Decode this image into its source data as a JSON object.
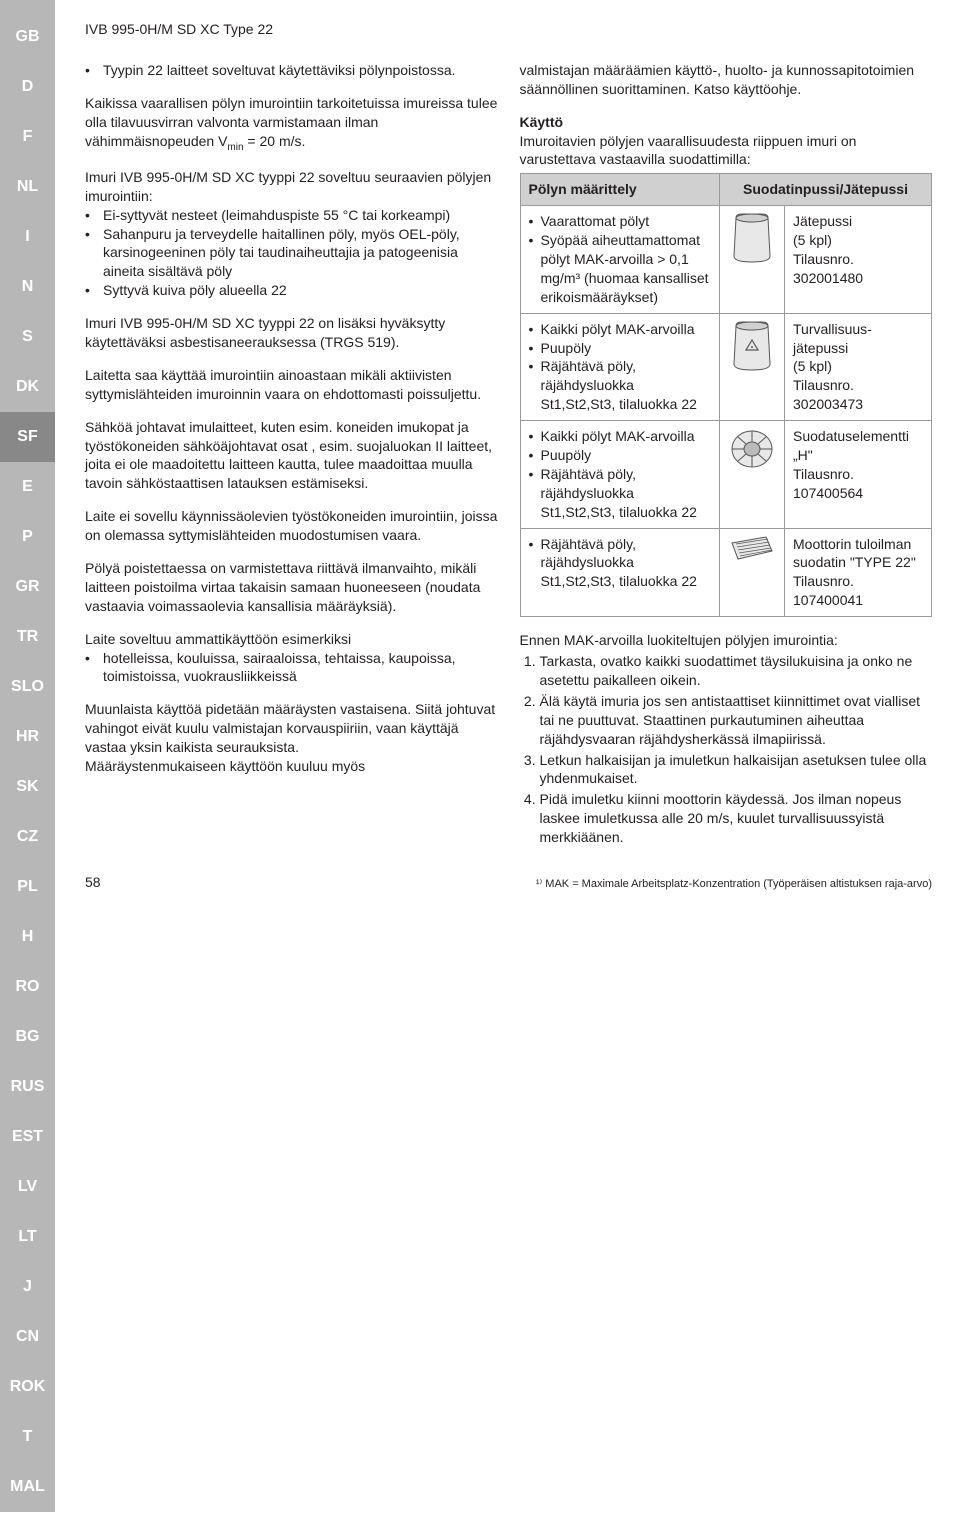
{
  "sidebar": {
    "items": [
      "GB",
      "D",
      "F",
      "NL",
      "I",
      "N",
      "S",
      "DK",
      "SF",
      "E",
      "P",
      "GR",
      "TR",
      "SLO",
      "HR",
      "SK",
      "CZ",
      "PL",
      "H",
      "RO",
      "BG",
      "RUS",
      "EST",
      "LV",
      "LT",
      "J",
      "CN",
      "ROK",
      "T",
      "MAL"
    ],
    "active": "SF"
  },
  "header": "IVB 995-0H/M SD XC Type 22",
  "left": {
    "p1_bullet": "Tyypin 22 laitteet soveltuvat käytettäviksi pölynpoistossa.",
    "p2a": "Kaikissa vaarallisen pölyn imurointiin tarkoitetuissa imureissa tulee olla tilavuusvirran valvonta varmistamaan ilman vähimmäisnopeuden V",
    "p2sub": "min",
    "p2b": " = 20 m/s.",
    "p3": "Imuri IVB 995-0H/M SD XC tyyppi 22 soveltuu seuraavien pölyjen imurointiin:",
    "list1": [
      "Ei-syttyvät nesteet (leimahduspiste 55 °C tai korkeampi)",
      "Sahanpuru ja terveydelle haitallinen pöly, myös OEL-pöly, karsinogeeninen pöly tai taudinaiheuttajia ja patogeenisia aineita sisältävä pöly",
      "Syttyvä kuiva pöly alueella 22"
    ],
    "p4": "Imuri IVB 995-0H/M SD XC tyyppi 22 on lisäksi hyväksytty käytettäväksi asbestisaneerauksessa (TRGS 519).",
    "p5": "Laitetta saa käyttää imurointiin ainoastaan mikäli aktiivisten syttymislähteiden imuroinnin vaara on ehdottomasti poissuljettu.",
    "p6": "Sähköä johtavat imulaitteet, kuten esim. koneiden imukopat ja työstökoneiden sähköäjohtavat osat , esim. suojaluokan II laitteet, joita ei ole maadoitettu laitteen kautta, tulee maadoittaa muulla tavoin sähköstaattisen latauksen estämiseksi.",
    "p7": "Laite ei sovellu käynnissäolevien työstökoneiden imurointiin, joissa on olemassa syttymislähteiden muodostumisen vaara.",
    "p8": "Pölyä poistettaessa on varmistettava riittävä ilmanvaihto, mikäli laitteen poistoilma virtaa takaisin samaan huoneeseen (noudata vastaavia voimassaolevia kansallisia määräyksiä).",
    "p9": "Laite soveltuu ammattikäyttöön esimerkiksi",
    "list2": [
      "hotelleissa, kouluissa, sairaaloissa, tehtaissa, kaupoissa, toimistoissa, vuokrausliikkeissä"
    ],
    "p10": "Muunlaista käyttöä pidetään määräysten vastaisena. Siitä johtuvat vahingot eivät kuulu valmistajan korvauspiiriin, vaan käyttäjä vastaa yksin kaikista seurauksista.",
    "p11": "Määräystenmukaiseen käyttöön kuuluu myös"
  },
  "right": {
    "p1": "valmistajan määräämien käyttö-, huolto- ja kunnossapitotoimien säännöllinen suorittaminen. Katso käyttöohje.",
    "title": "Käyttö",
    "p2": "Imuroitavien pölyjen vaarallisuudesta riippuen imuri on varustettava vastaavilla suodattimilla:",
    "tableHeaders": [
      "Pölyn määrittely",
      "Suodatinpussi/Jätepussi"
    ],
    "rows": [
      {
        "dust": [
          "Vaarattomat pölyt",
          "Syöpää aiheuttamattomat pölyt MAK-arvoilla > 0,1 mg/m³ (huomaa kansalliset erikoismääräykset)"
        ],
        "filter": "Jätepussi\n(5 kpl)\nTilausnro.\n302001480",
        "icon": "bag-open"
      },
      {
        "dust": [
          "Kaikki pölyt MAK-arvoilla",
          "Puupöly",
          "Räjähtävä pöly, räjähdysluokka St1,St2,St3, tilaluokka 22"
        ],
        "filter": "Turvallisuus-jätepussi\n(5 kpl)\nTilausnro.\n302003473",
        "icon": "bag-safety"
      },
      {
        "dust": [
          "Kaikki pölyt MAK-arvoilla",
          "Puupöly",
          "Räjähtävä pöly, räjähdysluokka St1,St2,St3, tilaluokka 22"
        ],
        "filter": "Suodatuselementti „H\"\nTilausnro.\n107400564",
        "icon": "cartridge"
      },
      {
        "dust": [
          "Räjähtävä pöly, räjähdysluokka St1,St2,St3, tilaluokka 22"
        ],
        "filter": "Moottorin tuloilman suodatin \"TYPE 22\"\nTilausnro.\n107400041",
        "icon": "panel"
      }
    ],
    "p3": "Ennen MAK-arvoilla luokiteltujen pölyjen imurointia:",
    "numlist": [
      "Tarkasta, ovatko kaikki suodattimet täysilukuisina ja onko ne asetettu paikalleen oikein.",
      "Älä käytä imuria jos sen antistaattiset kiinnittimet ovat vialliset tai ne puuttuvat. Staattinen purkautuminen aiheuttaa räjähdysvaaran räjähdysherkässä ilmapiirissä.",
      "Letkun halkaisijan ja imuletkun halkaisijan asetuksen tulee olla yhdenmukaiset.",
      "Pidä imuletku kiinni moottorin käydessä. Jos ilman nopeus laskee imuletkussa alle 20 m/s, kuulet turvallisuussyistä merkkiäänen."
    ]
  },
  "footer": {
    "page": "58",
    "note": "¹⁾ MAK = Maximale Arbeitsplatz-Konzentration (Työperäisen altistuksen raja-arvo)"
  }
}
